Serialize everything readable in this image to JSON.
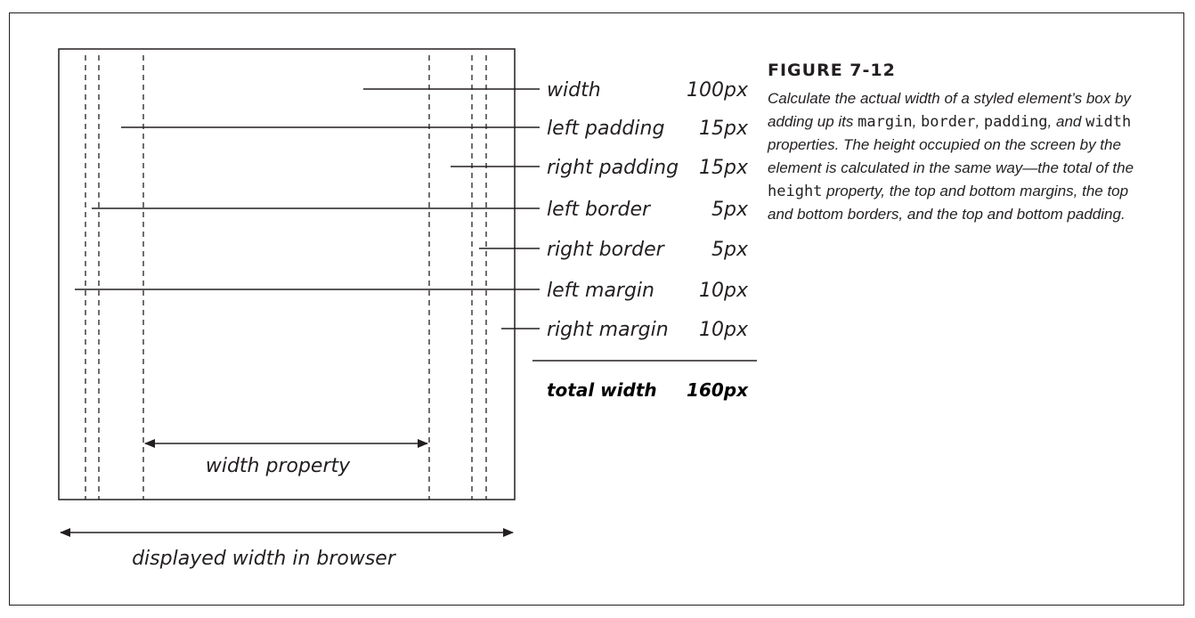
{
  "figure": {
    "title": "FIGURE 7-12",
    "caption_parts": [
      "Calculate the actual width of a styled element’s box by adding up its ",
      "margin",
      ", ",
      "border",
      ", ",
      "padding",
      ", and ",
      "width",
      " properties. The height occupied on the screen by the element is calculated in the same way—the total of the ",
      "height",
      " property, the top and bottom margins, the top and bottom borders, and the top and bottom padding."
    ]
  },
  "diagram": {
    "rows": [
      {
        "label": "width",
        "value": "100px"
      },
      {
        "label": "left padding",
        "value": "15px"
      },
      {
        "label": "right padding",
        "value": "15px"
      },
      {
        "label": "left border",
        "value": "5px"
      },
      {
        "label": "right border",
        "value": "5px"
      },
      {
        "label": "left margin",
        "value": "10px"
      },
      {
        "label": "right margin",
        "value": "10px"
      }
    ],
    "total_label": "total width",
    "total_value": "160px",
    "inner_arrow_label": "width property",
    "outer_arrow_label": "displayed width in browser"
  }
}
